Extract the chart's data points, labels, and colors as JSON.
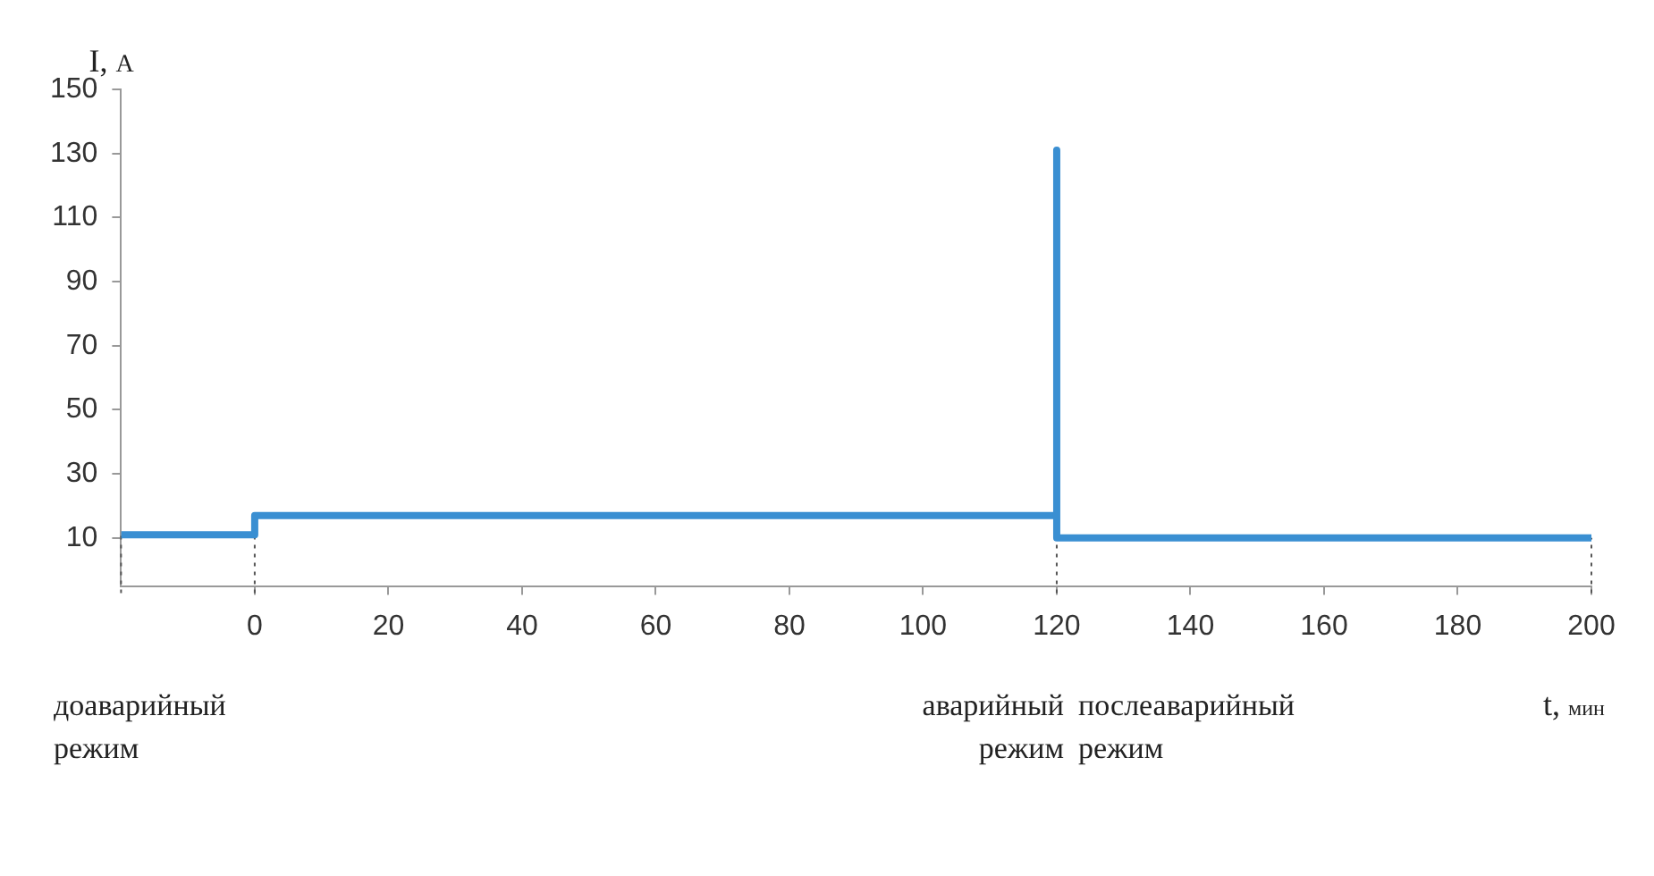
{
  "chart_data": {
    "type": "line",
    "xlabel": "t, мин",
    "ylabel": "I, А",
    "xlim": [
      -20,
      200
    ],
    "xticks": [
      0,
      20,
      40,
      60,
      80,
      100,
      120,
      140,
      160,
      180,
      200
    ],
    "ylim": [
      -5,
      150
    ],
    "yticks": [
      10,
      30,
      50,
      70,
      90,
      110,
      130,
      150
    ],
    "series": [
      {
        "color": "#3a8fd2",
        "x": [
          -20,
          0,
          0,
          120,
          120,
          120,
          200
        ],
        "values": [
          11,
          11,
          17,
          17,
          131,
          10,
          10
        ]
      }
    ],
    "ref_lines": [
      {
        "axis": "x",
        "value": -20,
        "line_style": "dotted"
      },
      {
        "axis": "x",
        "value": 0,
        "line_style": "dotted"
      },
      {
        "axis": "x",
        "value": 120,
        "line_style": "dotted"
      },
      {
        "axis": "x",
        "value": 200,
        "line_style": "dotted"
      }
    ],
    "annotations": [
      "доаварийный\nрежим",
      "аварийный\nрежим",
      "послеаварийный\nрежим"
    ],
    "grid": false,
    "legend": false,
    "marker": "none",
    "line_style": "solid"
  }
}
